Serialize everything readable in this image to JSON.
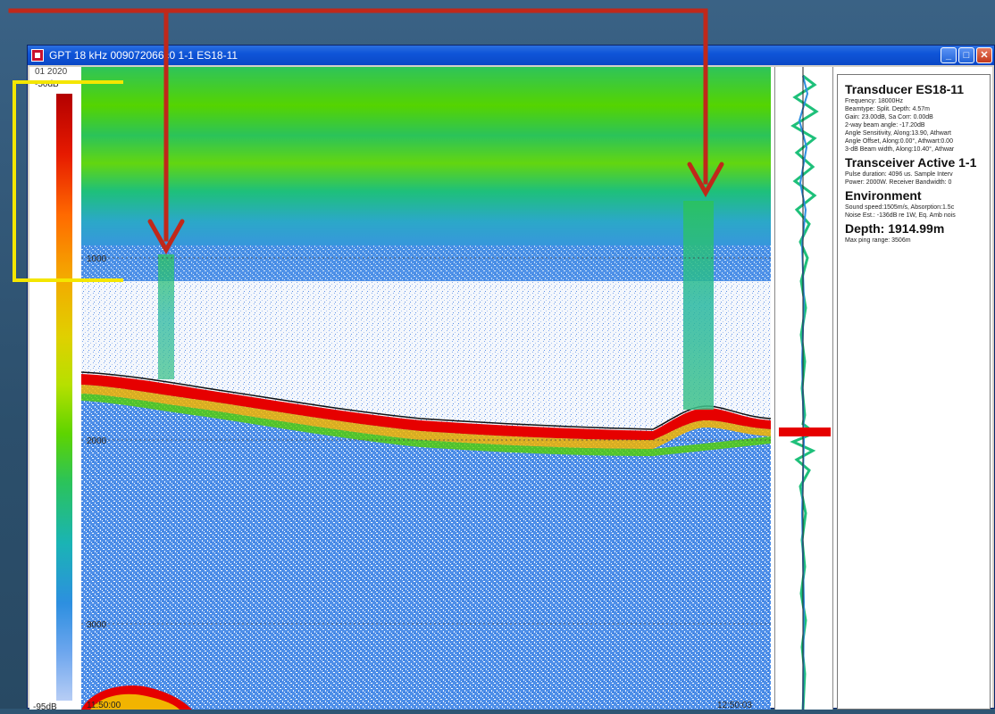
{
  "window": {
    "title": "GPT  18 kHz 009072066c0 1-1 ES18-11",
    "minimize_label": "_",
    "maximize_label": "□",
    "close_label": "✕"
  },
  "color_scale": {
    "cut_label": "01 2020",
    "top_label": "-50dB",
    "bottom_label": "-95dB"
  },
  "echogram": {
    "depth_labels": [
      "1000",
      "2000",
      "3000"
    ],
    "time_start": "11:50:00",
    "time_end": "12:50:03"
  },
  "info_panel": {
    "transducer_title": "Transducer ES18-11",
    "transducer_lines": [
      "Frequency: 18000Hz",
      "Beamtype: Split. Depth: 4.57m",
      "Gain: 23.00dB, Sa Corr: 0.00dB",
      "2-way beam angle: -17.20dB",
      "Angle Sensitivity, Along:13.90, Athwart",
      "Angle Offset, Along:0.00°, Athwart:0.00",
      "3-dB Beam width, Along:10.40°, Athwar"
    ],
    "transceiver_title": "Transceiver Active  1-1",
    "transceiver_lines": [
      "Pulse duration: 4096 us. Sample Interv",
      "Power: 2000W. Receiver Bandwidth: 0"
    ],
    "environment_title": "Environment",
    "environment_lines": [
      "Sound speed:1505m/s, Absorption:1.5c",
      "Noise Est.: -136dB re 1W, Eq. Amb nois"
    ],
    "depth_text": "Depth: 1914.99m",
    "max_range_text": "Max ping range: 3506m"
  },
  "colors": {
    "annotation_arrow": "#c0281a",
    "annotation_bracket": "#f4e600",
    "bottom_echo": "#e60000",
    "titlebar": "#0a48c6"
  }
}
